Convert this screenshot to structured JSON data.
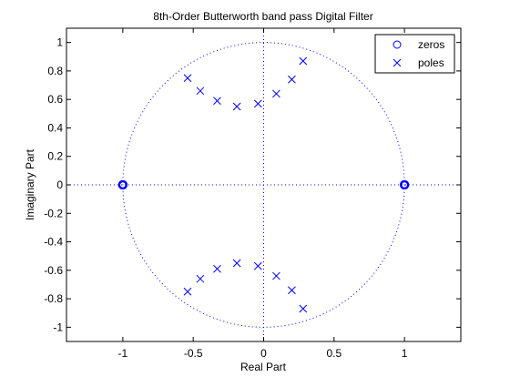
{
  "chart_data": {
    "type": "scatter",
    "title": "8th-Order Butterworth band pass Digital Filter",
    "xlabel": "Real Part",
    "ylabel": "Imaginary Part",
    "xlim": [
      -1.4,
      1.4
    ],
    "ylim": [
      -1.1,
      1.1
    ],
    "xticks": [
      -1,
      -0.5,
      0,
      0.5,
      1
    ],
    "xtick_labels": [
      "-1",
      "-0.5",
      "0",
      "0.5",
      "1"
    ],
    "yticks": [
      -1,
      -0.8,
      -0.6,
      -0.4,
      -0.2,
      0,
      0.2,
      0.4,
      0.6,
      0.8,
      1
    ],
    "ytick_labels": [
      "-1",
      "-0.8",
      "-0.6",
      "-0.4",
      "-0.2",
      "0",
      "0.2",
      "0.4",
      "0.6",
      "0.8",
      "1"
    ],
    "grid": false,
    "unit_circle": true,
    "axis_lines_dotted": true,
    "legend_position": "top-right",
    "series": [
      {
        "name": "zeros",
        "marker": "circle",
        "color": "#0000ff",
        "points": [
          {
            "x": -1,
            "y": 0
          },
          {
            "x": -1,
            "y": 0
          },
          {
            "x": -1,
            "y": 0
          },
          {
            "x": -1,
            "y": 0
          },
          {
            "x": -1,
            "y": 0
          },
          {
            "x": -1,
            "y": 0
          },
          {
            "x": -1,
            "y": 0
          },
          {
            "x": -1,
            "y": 0
          },
          {
            "x": 1,
            "y": 0
          },
          {
            "x": 1,
            "y": 0
          },
          {
            "x": 1,
            "y": 0
          },
          {
            "x": 1,
            "y": 0
          },
          {
            "x": 1,
            "y": 0
          },
          {
            "x": 1,
            "y": 0
          },
          {
            "x": 1,
            "y": 0
          },
          {
            "x": 1,
            "y": 0
          }
        ]
      },
      {
        "name": "poles",
        "marker": "x",
        "color": "#0000ff",
        "points": [
          {
            "x": -0.54,
            "y": 0.75
          },
          {
            "x": -0.45,
            "y": 0.66
          },
          {
            "x": -0.33,
            "y": 0.59
          },
          {
            "x": -0.19,
            "y": 0.55
          },
          {
            "x": -0.04,
            "y": 0.57
          },
          {
            "x": 0.09,
            "y": 0.64
          },
          {
            "x": 0.2,
            "y": 0.74
          },
          {
            "x": 0.28,
            "y": 0.87
          },
          {
            "x": -0.54,
            "y": -0.75
          },
          {
            "x": -0.45,
            "y": -0.66
          },
          {
            "x": -0.33,
            "y": -0.59
          },
          {
            "x": -0.19,
            "y": -0.55
          },
          {
            "x": -0.04,
            "y": -0.57
          },
          {
            "x": 0.09,
            "y": -0.64
          },
          {
            "x": 0.2,
            "y": -0.74
          },
          {
            "x": 0.28,
            "y": -0.87
          }
        ]
      }
    ]
  }
}
